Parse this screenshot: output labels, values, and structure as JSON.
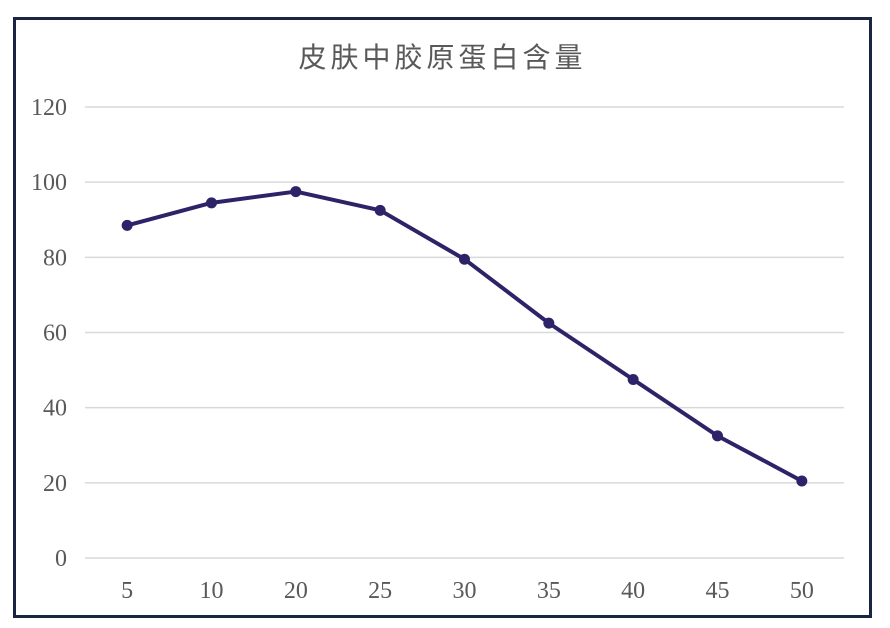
{
  "chart_data": {
    "type": "line",
    "title": "皮肤中胶原蛋白含量",
    "categories": [
      "5",
      "10",
      "20",
      "25",
      "30",
      "35",
      "40",
      "45",
      "50"
    ],
    "series": [
      {
        "name": "皮肤中胶原蛋白含量",
        "values": [
          88.5,
          94.5,
          97.5,
          92.5,
          79.5,
          62.5,
          47.5,
          32.5,
          20.5
        ]
      }
    ],
    "xlabel": "",
    "ylabel": "",
    "ylim": [
      0,
      120
    ],
    "yticks": [
      0,
      20,
      40,
      60,
      80,
      100,
      120
    ],
    "grid": "horizontal",
    "legend_position": "none",
    "line_color": "#2c2368",
    "marker_shape": "circle",
    "gridline_color": "#d9d9d9",
    "tick_label_color": "#595959",
    "title_color": "#595959",
    "frame_border_color": "#1b2440",
    "background_color": "#ffffff"
  }
}
